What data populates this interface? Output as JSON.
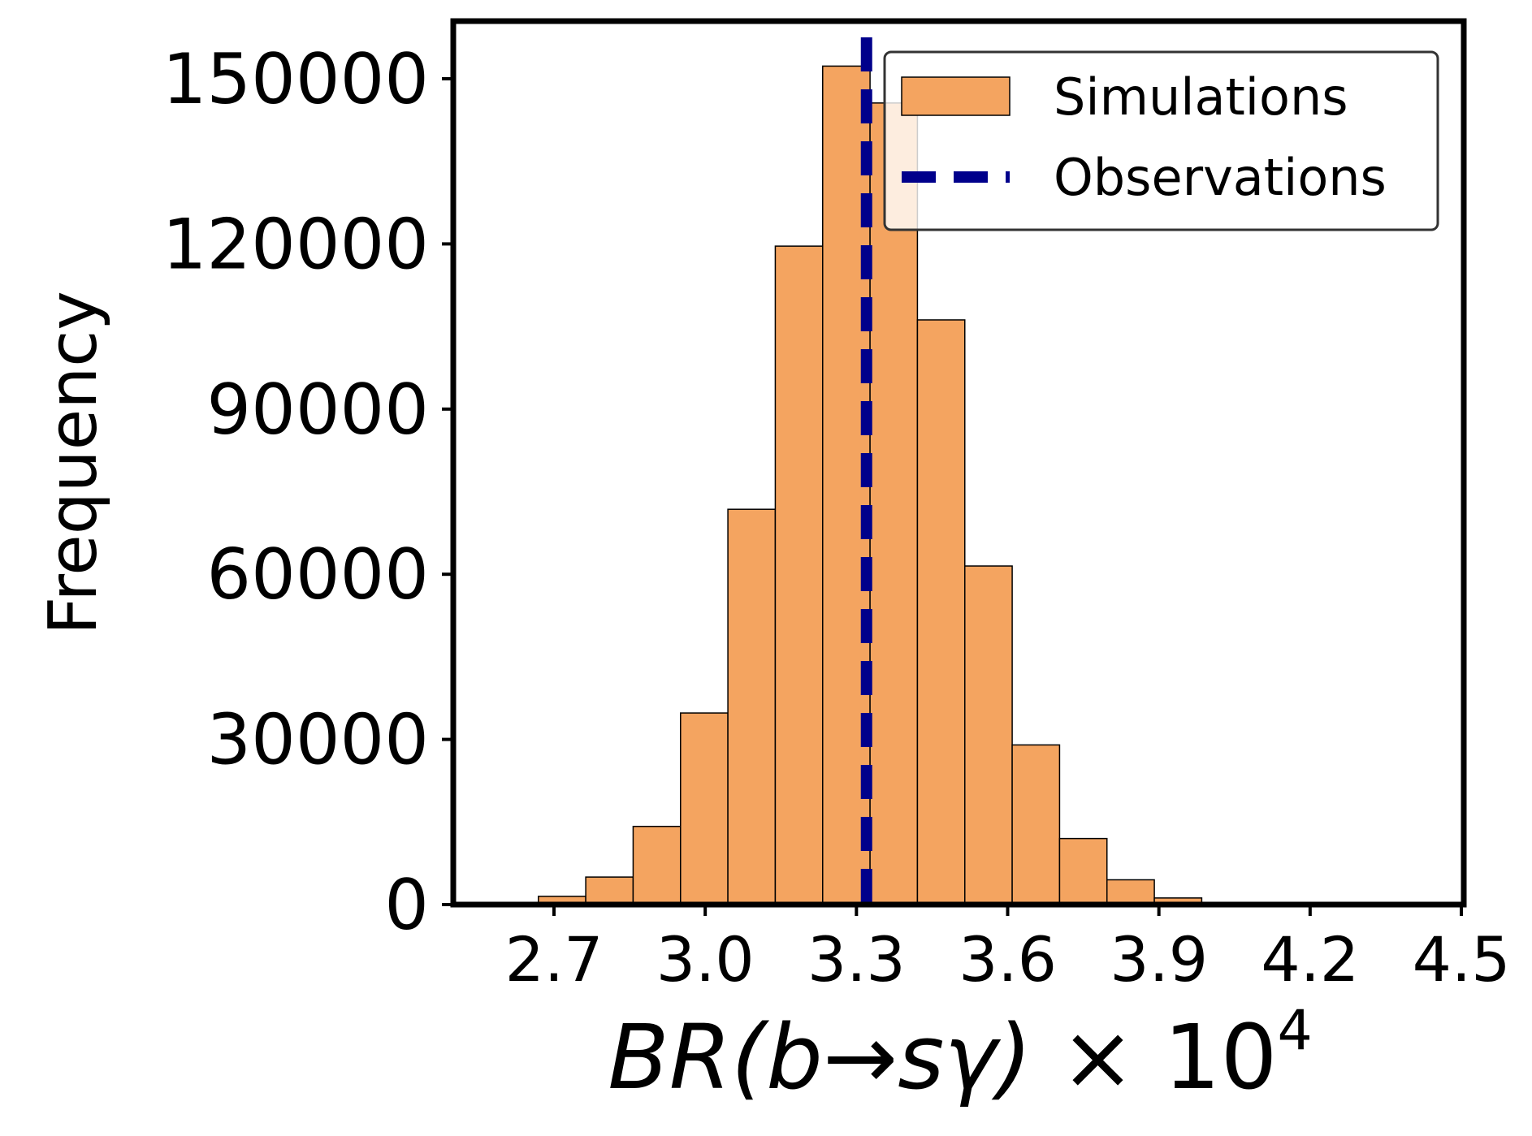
{
  "chart_data": {
    "type": "histogram",
    "xlabel": {
      "prefix": "BR(",
      "b": "b",
      "arrow": "→",
      "s": "s",
      "gamma": "γ",
      "close": ")",
      "times": " × 10",
      "exponent": "4"
    },
    "ylabel": "Frequency",
    "xlim": [
      2.53,
      4.5
    ],
    "ylim": [
      0,
      160000
    ],
    "xticks": [
      2.7,
      3.0,
      3.3,
      3.6,
      3.9,
      4.2,
      4.5
    ],
    "xtick_labels": [
      "2.7",
      "3.0",
      "3.3",
      "3.6",
      "3.9",
      "4.2",
      "4.5"
    ],
    "yticks": [
      0,
      30000,
      60000,
      90000,
      120000,
      150000
    ],
    "ytick_labels": [
      "0",
      "30000",
      "60000",
      "90000",
      "120000",
      "150000"
    ],
    "bins": [
      {
        "start": 2.669,
        "end": 2.763,
        "count": 1500
      },
      {
        "start": 2.763,
        "end": 2.857,
        "count": 5000
      },
      {
        "start": 2.857,
        "end": 2.951,
        "count": 14200
      },
      {
        "start": 2.951,
        "end": 3.045,
        "count": 34800
      },
      {
        "start": 3.045,
        "end": 3.139,
        "count": 71800
      },
      {
        "start": 3.139,
        "end": 3.233,
        "count": 119600
      },
      {
        "start": 3.233,
        "end": 3.327,
        "count": 152300
      },
      {
        "start": 3.327,
        "end": 3.421,
        "count": 145600
      },
      {
        "start": 3.421,
        "end": 3.515,
        "count": 106200
      },
      {
        "start": 3.515,
        "end": 3.609,
        "count": 61500
      },
      {
        "start": 3.609,
        "end": 3.703,
        "count": 29000
      },
      {
        "start": 3.703,
        "end": 3.797,
        "count": 12000
      },
      {
        "start": 3.797,
        "end": 3.891,
        "count": 4500
      },
      {
        "start": 3.891,
        "end": 3.985,
        "count": 1200
      }
    ],
    "observation": 3.32,
    "series": [
      {
        "name": "Simulations",
        "type": "bar",
        "color": "#F4A460"
      },
      {
        "name": "Observations",
        "type": "dashed-line",
        "color": "#00008B"
      }
    ],
    "legend_position": "top-right",
    "grid": false
  }
}
